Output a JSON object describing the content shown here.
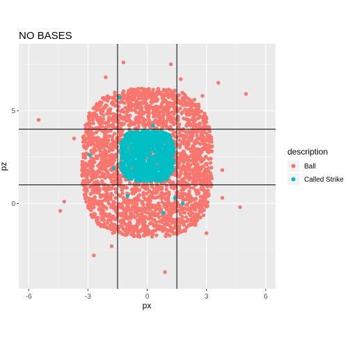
{
  "chart_data": {
    "type": "scatter",
    "title": "NO BASES",
    "xlabel": "px",
    "ylabel": "pz",
    "xlim": [
      -6.5,
      6.5
    ],
    "ylim": [
      -4.6,
      8.6
    ],
    "x_ticks": [
      -6,
      -3,
      0,
      3,
      6
    ],
    "y_ticks": [
      0,
      5
    ],
    "grid": true,
    "legend": {
      "title": "description",
      "position": "right",
      "entries": [
        {
          "label": "Ball",
          "color": "#F8766D"
        },
        {
          "label": "Called Strike",
          "color": "#00BFC4"
        }
      ]
    },
    "reference_lines": {
      "vertical_x": [
        -1.5,
        1.5
      ],
      "horizontal_y": [
        1.0,
        4.0
      ]
    },
    "series": [
      {
        "name": "Ball",
        "color": "#F8766D",
        "cluster": {
          "x_range": [
            -3.3,
            3.3
          ],
          "y_range": [
            -1.8,
            6.2
          ]
        },
        "points": [
          {
            "x": -5.5,
            "y": 4.5
          },
          {
            "x": -4.2,
            "y": 0.1
          },
          {
            "x": -4.4,
            "y": -0.4
          },
          {
            "x": -2.7,
            "y": -2.8
          },
          {
            "x": -1.2,
            "y": 7.6
          },
          {
            "x": 1.2,
            "y": 7.5
          },
          {
            "x": 2.8,
            "y": 5.8
          },
          {
            "x": 3.6,
            "y": 6.5
          },
          {
            "x": 5.0,
            "y": 5.9
          },
          {
            "x": 4.7,
            "y": -0.2
          },
          {
            "x": 3.8,
            "y": 0.3
          },
          {
            "x": 0.9,
            "y": -3.7
          },
          {
            "x": -1.8,
            "y": -2.3
          },
          {
            "x": 3.0,
            "y": -1.6
          },
          {
            "x": -3.7,
            "y": 3.5
          },
          {
            "x": 3.8,
            "y": 1.8
          },
          {
            "x": -2.1,
            "y": 6.8
          },
          {
            "x": 1.7,
            "y": 6.7
          }
        ]
      },
      {
        "name": "Called Strike",
        "color": "#00BFC4",
        "cluster": {
          "x_range": [
            -1.35,
            1.35
          ],
          "y_range": [
            1.2,
            3.9
          ]
        },
        "points": [
          {
            "x": -1.4,
            "y": 5.7
          },
          {
            "x": -2.9,
            "y": 2.6
          },
          {
            "x": -1.7,
            "y": 1.9
          },
          {
            "x": -1.0,
            "y": 0.4
          },
          {
            "x": 0.3,
            "y": 4.2
          },
          {
            "x": 1.4,
            "y": 0.3
          },
          {
            "x": 1.8,
            "y": 0.0
          },
          {
            "x": 0.8,
            "y": -0.5
          },
          {
            "x": 0.2,
            "y": 1.3
          }
        ]
      }
    ]
  }
}
